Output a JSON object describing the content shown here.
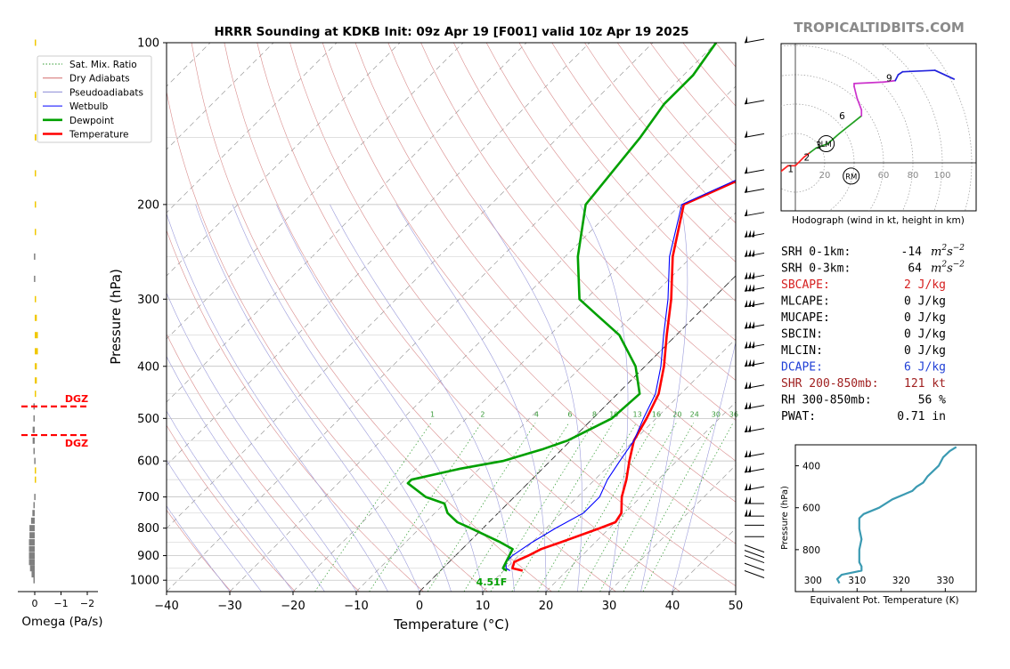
{
  "title": "HRRR Sounding at KDKB Init: 09z Apr 19 [F001] valid 10z Apr 19 2025",
  "brand": "TROPICALTIDBITS.COM",
  "legend": [
    {
      "label": "Sat. Mix. Ratio",
      "color": "#2e9a2e",
      "style": "dotted"
    },
    {
      "label": "Dry Adiabats",
      "color": "#d46a6a",
      "style": "solid"
    },
    {
      "label": "Pseudoadiabats",
      "color": "#8c8cd6",
      "style": "solid"
    },
    {
      "label": "Wetbulb",
      "color": "#0000ff",
      "style": "solid"
    },
    {
      "label": "Dewpoint",
      "color": "#00a000",
      "style": "bold"
    },
    {
      "label": "Temperature",
      "color": "#ff0000",
      "style": "bold"
    }
  ],
  "chart_data": [
    {
      "type": "line",
      "name": "skew-t",
      "xlabel": "Temperature (°C)",
      "ylabel": "Pressure (hPa)",
      "xlim": [
        -40,
        50
      ],
      "ylim": [
        1050,
        100
      ],
      "y_scale": "log",
      "skew": "45 degrees",
      "x_ticks": [
        -40,
        -30,
        -20,
        -10,
        0,
        10,
        20,
        30,
        40,
        50
      ],
      "y_ticks": [
        100,
        200,
        300,
        400,
        500,
        600,
        700,
        800,
        900,
        1000
      ],
      "grid": true,
      "mixing_ratio_labels": [
        "1",
        "2",
        "4",
        "6",
        "8",
        "10",
        "13",
        "16",
        "20",
        "24",
        "30",
        "36"
      ],
      "surface_label": "4.51F",
      "series": [
        {
          "name": "Temperature",
          "color": "#ff0000",
          "points": [
            [
              960,
              13.0
            ],
            [
              950,
              11.0
            ],
            [
              925,
              10.3
            ],
            [
              900,
              11.5
            ],
            [
              875,
              12.5
            ],
            [
              850,
              14.5
            ],
            [
              800,
              18.5
            ],
            [
              780,
              20.0
            ],
            [
              750,
              19.5
            ],
            [
              700,
              17.0
            ],
            [
              650,
              15.0
            ],
            [
              600,
              12.5
            ],
            [
              550,
              10.0
            ],
            [
              500,
              8.5
            ],
            [
              450,
              6.5
            ],
            [
              400,
              3.0
            ],
            [
              350,
              -1.5
            ],
            [
              300,
              -6.5
            ],
            [
              250,
              -13.0
            ],
            [
              200,
              -19.5
            ],
            [
              170,
              -12.0
            ],
            [
              150,
              -5.0
            ],
            [
              130,
              3.0
            ],
            [
              115,
              12.0
            ],
            [
              100,
              22.0
            ]
          ]
        },
        {
          "name": "Wetbulb",
          "color": "#0000ff",
          "points": [
            [
              960,
              11.0
            ],
            [
              950,
              10.0
            ],
            [
              925,
              9.0
            ],
            [
              900,
              9.0
            ],
            [
              850,
              10.0
            ],
            [
              800,
              11.5
            ],
            [
              750,
              13.5
            ],
            [
              700,
              13.5
            ],
            [
              650,
              12.0
            ],
            [
              600,
              11.0
            ],
            [
              550,
              10.0
            ],
            [
              500,
              8.0
            ],
            [
              450,
              6.0
            ],
            [
              400,
              2.5
            ],
            [
              350,
              -2.0
            ],
            [
              300,
              -7.0
            ],
            [
              250,
              -13.5
            ],
            [
              200,
              -19.8
            ],
            [
              170,
              -12.5
            ],
            [
              150,
              -5.5
            ],
            [
              130,
              2.5
            ],
            [
              115,
              11.0
            ],
            [
              100,
              21.0
            ]
          ]
        },
        {
          "name": "Dewpoint",
          "color": "#00a000",
          "points": [
            [
              960,
              10.5
            ],
            [
              950,
              9.5
            ],
            [
              925,
              9.0
            ],
            [
              900,
              8.5
            ],
            [
              875,
              8.0
            ],
            [
              850,
              5.0
            ],
            [
              800,
              -2.0
            ],
            [
              780,
              -5.0
            ],
            [
              750,
              -8.0
            ],
            [
              720,
              -10.0
            ],
            [
              700,
              -14.0
            ],
            [
              660,
              -19.0
            ],
            [
              650,
              -19.0
            ],
            [
              620,
              -13.0
            ],
            [
              600,
              -7.5
            ],
            [
              570,
              -3.0
            ],
            [
              550,
              -0.5
            ],
            [
              500,
              3.0
            ],
            [
              450,
              3.5
            ],
            [
              400,
              -1.5
            ],
            [
              350,
              -9.0
            ],
            [
              320,
              -16.0
            ],
            [
              300,
              -21.0
            ],
            [
              250,
              -28.0
            ],
            [
              200,
              -35.0
            ],
            [
              150,
              -37.0
            ],
            [
              130,
              -38.5
            ],
            [
              115,
              -38.5
            ],
            [
              100,
              -40.0
            ]
          ]
        }
      ]
    },
    {
      "type": "bar",
      "name": "omega",
      "xlabel": "Omega (Pa/s)",
      "x_ticks": [
        "0",
        "−1",
        "−2"
      ],
      "xlim": [
        0.5,
        -2.3
      ],
      "dgz_label": "DGZ",
      "dgz_bounds_hPa": [
        475,
        537
      ],
      "values": [
        [
          1000,
          0.05
        ],
        [
          975,
          0.12
        ],
        [
          950,
          0.18
        ],
        [
          925,
          0.22
        ],
        [
          900,
          0.22
        ],
        [
          875,
          0.22
        ],
        [
          850,
          0.22
        ],
        [
          825,
          0.2
        ],
        [
          800,
          0.2
        ],
        [
          775,
          0.14
        ],
        [
          750,
          0.09
        ],
        [
          725,
          0.05
        ],
        [
          700,
          0.02
        ],
        [
          650,
          -0.02
        ],
        [
          625,
          -0.02
        ],
        [
          600,
          0.02
        ],
        [
          575,
          0.05
        ],
        [
          550,
          0.08
        ],
        [
          525,
          0.08
        ],
        [
          500,
          0.05
        ],
        [
          475,
          0.05
        ],
        [
          450,
          -0.05
        ],
        [
          425,
          -0.08
        ],
        [
          400,
          -0.08
        ],
        [
          375,
          -0.12
        ],
        [
          350,
          -0.12
        ],
        [
          325,
          -0.08
        ],
        [
          300,
          -0.05
        ],
        [
          275,
          0.03
        ],
        [
          250,
          0.03
        ],
        [
          225,
          -0.02
        ],
        [
          200,
          -0.02
        ],
        [
          175,
          -0.03
        ],
        [
          150,
          -0.06
        ],
        [
          125,
          -0.04
        ],
        [
          100,
          -0.02
        ]
      ]
    },
    {
      "type": "line",
      "name": "hodograph",
      "xlabel": "Hodograph (wind in kt, height in km)",
      "ring_labels": [
        "20",
        "60",
        "80",
        "100"
      ],
      "height_labels": [
        "1",
        "2",
        "3",
        "6",
        "9"
      ],
      "marker_labels": [
        "LM",
        "RM"
      ],
      "points": [
        [
          -28,
          -12,
          "#ff2020"
        ],
        [
          -25,
          -8,
          "#ff2020"
        ],
        [
          -20,
          -10,
          "#ff2020"
        ],
        [
          -10,
          -6,
          "#ff2020"
        ],
        [
          -5,
          -2,
          "#ff2020"
        ],
        [
          0,
          -2,
          "#ff2020"
        ],
        [
          6,
          4,
          "#ff2020"
        ],
        [
          10,
          7,
          "#ff2020"
        ],
        [
          14,
          10,
          "#22a022"
        ],
        [
          22,
          13,
          "#22a022"
        ],
        [
          30,
          20,
          "#22a022"
        ],
        [
          40,
          28,
          "#22a022"
        ],
        [
          45,
          32,
          "#22a022"
        ],
        [
          45,
          36,
          "#cc33cc"
        ],
        [
          42,
          44,
          "#cc33cc"
        ],
        [
          40,
          52,
          "#cc33cc"
        ],
        [
          40,
          54,
          "#cc33cc"
        ],
        [
          60,
          55,
          "#cc33cc"
        ],
        [
          68,
          56,
          "#cc33cc"
        ],
        [
          70,
          60,
          "#2222dd"
        ],
        [
          73,
          62,
          "#2222dd"
        ],
        [
          95,
          63,
          "#2222dd"
        ],
        [
          108,
          57,
          "#2222dd"
        ]
      ]
    },
    {
      "type": "line",
      "name": "theta-e",
      "xlabel": "Equivalent Pot. Temperature (K)",
      "ylabel": "Pressure (hPa)",
      "x_ticks": [
        300,
        310,
        320,
        330
      ],
      "y_ticks": [
        400,
        600,
        800
      ],
      "xlim": [
        296,
        337
      ],
      "ylim": [
        1000,
        300
      ],
      "points": [
        [
          960,
          306.0
        ],
        [
          940,
          305.5
        ],
        [
          920,
          306.5
        ],
        [
          900,
          311.0
        ],
        [
          880,
          311.0
        ],
        [
          860,
          310.5
        ],
        [
          800,
          310.5
        ],
        [
          750,
          311.0
        ],
        [
          700,
          310.5
        ],
        [
          650,
          310.5
        ],
        [
          630,
          311.5
        ],
        [
          600,
          315.0
        ],
        [
          560,
          318.0
        ],
        [
          520,
          322.5
        ],
        [
          500,
          323.5
        ],
        [
          480,
          325.0
        ],
        [
          450,
          326.0
        ],
        [
          400,
          328.5
        ],
        [
          360,
          329.5
        ],
        [
          330,
          331.0
        ],
        [
          310,
          332.5
        ]
      ]
    }
  ],
  "stats": [
    {
      "label": "SRH 0-1km:",
      "value": "-14",
      "unit_base": "m",
      "unit_sup1": "2",
      "unit_mid": "s",
      "unit_sup2": "−2",
      "color": "#000000"
    },
    {
      "label": "SRH 0-3km:",
      "value": "64",
      "unit_base": "m",
      "unit_sup1": "2",
      "unit_mid": "s",
      "unit_sup2": "−2",
      "color": "#000000"
    },
    {
      "label": "SBCAPE:",
      "value": "2 J/kg",
      "color": "#d62020"
    },
    {
      "label": "MLCAPE:",
      "value": "0 J/kg",
      "color": "#000000"
    },
    {
      "label": "MUCAPE:",
      "value": "0 J/kg",
      "color": "#000000"
    },
    {
      "label": "SBCIN:",
      "value": "0 J/kg",
      "color": "#000000"
    },
    {
      "label": "MLCIN:",
      "value": "0 J/kg",
      "color": "#000000"
    },
    {
      "label": "DCAPE:",
      "value": "6 J/kg",
      "color": "#1f3fd6"
    },
    {
      "label": "SHR 200-850mb:",
      "value": "121 kt",
      "color": "#a02020"
    },
    {
      "label": "RH 300-850mb:",
      "value": "56 %",
      "color": "#000000"
    },
    {
      "label": "PWAT:",
      "value": "0.71 in",
      "color": "#000000"
    }
  ]
}
